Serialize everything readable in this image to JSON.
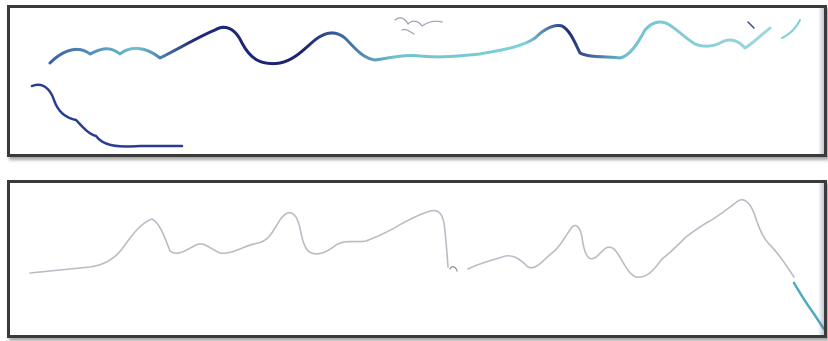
{
  "image": {
    "description_colors": {
      "ink_dark": "#1f2a7a",
      "ink_mid": "#3b5fa8",
      "ink_light": "#5fb8c8",
      "faded_ink": "#b9bcc4",
      "frame": "#3a3a3a"
    },
    "strips": [
      {
        "label": "",
        "name": "top-strip"
      },
      {
        "label": "",
        "name": "bottom-strip"
      }
    ]
  }
}
